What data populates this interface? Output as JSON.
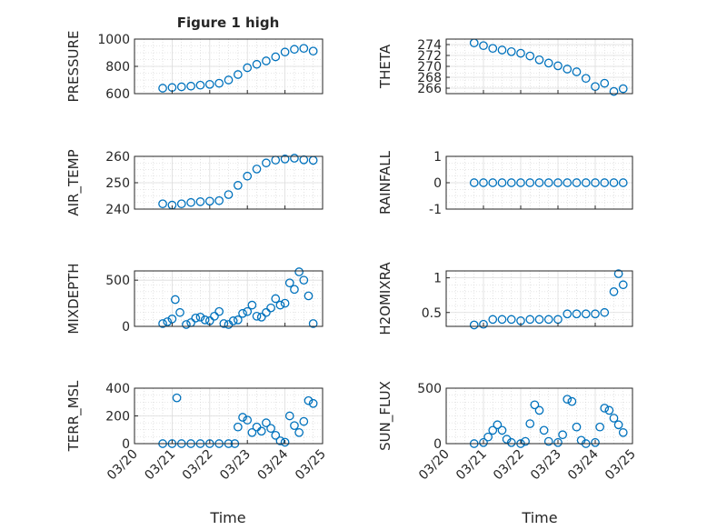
{
  "figure_title": "Figure 1 high",
  "x_axis_label": "Time",
  "chart_data": [
    {
      "type": "scatter",
      "panel": "PRESSURE",
      "title": "Figure 1 high",
      "ylabel": "PRESSURE",
      "ylim": [
        600,
        1000
      ],
      "yticks": [
        600,
        800,
        1000
      ],
      "xlabel": "",
      "xlim": [
        "03/20",
        "03/25"
      ],
      "xtick_labels": [],
      "grid": true,
      "x": [
        "03/20 18:00",
        "03/21 00:00",
        "03/21 06:00",
        "03/21 12:00",
        "03/21 18:00",
        "03/22 00:00",
        "03/22 06:00",
        "03/22 12:00",
        "03/22 18:00",
        "03/23 00:00",
        "03/23 06:00",
        "03/23 12:00",
        "03/23 18:00",
        "03/24 00:00",
        "03/24 06:00",
        "03/24 12:00",
        "03/24 18:00"
      ],
      "y": [
        640,
        645,
        650,
        655,
        662,
        668,
        676,
        700,
        740,
        790,
        815,
        840,
        870,
        905,
        925,
        932,
        912
      ]
    },
    {
      "type": "scatter",
      "panel": "THETA",
      "ylabel": "THETA",
      "ylim": [
        265,
        275
      ],
      "yticks": [
        266,
        268,
        270,
        272,
        274
      ],
      "xlabel": "",
      "xlim": [
        "03/20",
        "03/25"
      ],
      "xtick_labels": [],
      "grid": true,
      "x": [
        "03/20 18:00",
        "03/21 00:00",
        "03/21 06:00",
        "03/21 12:00",
        "03/21 18:00",
        "03/22 00:00",
        "03/22 06:00",
        "03/22 12:00",
        "03/22 18:00",
        "03/23 00:00",
        "03/23 06:00",
        "03/23 12:00",
        "03/23 18:00",
        "03/24 00:00",
        "03/24 06:00",
        "03/24 12:00",
        "03/24 18:00"
      ],
      "y": [
        274.3,
        273.8,
        273.3,
        273.0,
        272.7,
        272.4,
        271.9,
        271.2,
        270.6,
        270.1,
        269.5,
        269.0,
        267.8,
        266.3,
        266.9,
        265.4,
        265.9
      ]
    },
    {
      "type": "scatter",
      "panel": "AIR_TEMP",
      "ylabel": "AIR_TEMP",
      "ylim": [
        240,
        260
      ],
      "yticks": [
        240,
        250,
        260
      ],
      "xlabel": "",
      "xlim": [
        "03/20",
        "03/25"
      ],
      "xtick_labels": [],
      "grid": true,
      "x": [
        "03/20 18:00",
        "03/21 00:00",
        "03/21 06:00",
        "03/21 12:00",
        "03/21 18:00",
        "03/22 00:00",
        "03/22 06:00",
        "03/22 12:00",
        "03/22 18:00",
        "03/23 00:00",
        "03/23 06:00",
        "03/23 12:00",
        "03/23 18:00",
        "03/24 00:00",
        "03/24 06:00",
        "03/24 12:00",
        "03/24 18:00"
      ],
      "y": [
        242.0,
        241.5,
        242.0,
        242.5,
        242.8,
        243.0,
        243.2,
        245.5,
        249.0,
        252.5,
        255.2,
        257.5,
        258.6,
        259.0,
        259.3,
        258.7,
        258.5
      ]
    },
    {
      "type": "scatter",
      "panel": "RAINFALL",
      "ylabel": "RAINFALL",
      "ylim": [
        -1,
        1
      ],
      "yticks": [
        -1,
        0,
        1
      ],
      "xlabel": "",
      "xlim": [
        "03/20",
        "03/25"
      ],
      "xtick_labels": [],
      "grid": true,
      "x": [
        "03/20 18:00",
        "03/21 00:00",
        "03/21 06:00",
        "03/21 12:00",
        "03/21 18:00",
        "03/22 00:00",
        "03/22 06:00",
        "03/22 12:00",
        "03/22 18:00",
        "03/23 00:00",
        "03/23 06:00",
        "03/23 12:00",
        "03/23 18:00",
        "03/24 00:00",
        "03/24 06:00",
        "03/24 12:00",
        "03/24 18:00"
      ],
      "y": [
        0,
        0,
        0,
        0,
        0,
        0,
        0,
        0,
        0,
        0,
        0,
        0,
        0,
        0,
        0,
        0,
        0
      ]
    },
    {
      "type": "scatter",
      "panel": "MIXDEPTH",
      "ylabel": "MIXDEPTH",
      "ylim": [
        0,
        600
      ],
      "yticks": [
        0,
        500
      ],
      "xlabel": "",
      "xlim": [
        "03/20",
        "03/25"
      ],
      "xtick_labels": [],
      "grid": true,
      "x": [
        "03/20 18:00",
        "03/20 21:00",
        "03/21 00:00",
        "03/21 02:00",
        "03/21 05:00",
        "03/21 09:00",
        "03/21 12:00",
        "03/21 15:00",
        "03/21 18:00",
        "03/21 21:00",
        "03/22 00:00",
        "03/22 03:00",
        "03/22 06:00",
        "03/22 09:00",
        "03/22 12:00",
        "03/22 15:00",
        "03/22 18:00",
        "03/22 21:00",
        "03/23 00:00",
        "03/23 03:00",
        "03/23 06:00",
        "03/23 09:00",
        "03/23 12:00",
        "03/23 15:00",
        "03/23 18:00",
        "03/23 21:00",
        "03/24 00:00",
        "03/24 03:00",
        "03/24 06:00",
        "03/24 09:00",
        "03/24 12:00",
        "03/24 15:00",
        "03/24 18:00"
      ],
      "y": [
        30,
        50,
        80,
        290,
        150,
        20,
        40,
        90,
        100,
        70,
        60,
        110,
        160,
        30,
        20,
        60,
        70,
        140,
        160,
        230,
        110,
        100,
        150,
        200,
        300,
        230,
        250,
        470,
        400,
        590,
        500,
        330,
        30
      ]
    },
    {
      "type": "scatter",
      "panel": "H2OMIXRA",
      "ylabel": "H2OMIXRA",
      "ylim": [
        0.3,
        1.1
      ],
      "yticks": [
        0.5,
        1
      ],
      "xlabel": "",
      "xlim": [
        "03/20",
        "03/25"
      ],
      "xtick_labels": [],
      "grid": true,
      "x": [
        "03/20 18:00",
        "03/21 00:00",
        "03/21 06:00",
        "03/21 12:00",
        "03/21 18:00",
        "03/22 00:00",
        "03/22 06:00",
        "03/22 12:00",
        "03/22 18:00",
        "03/23 00:00",
        "03/23 06:00",
        "03/23 12:00",
        "03/23 18:00",
        "03/24 00:00",
        "03/24 06:00",
        "03/24 12:00",
        "03/24 15:00",
        "03/24 18:00"
      ],
      "y": [
        0.32,
        0.33,
        0.4,
        0.4,
        0.4,
        0.38,
        0.4,
        0.4,
        0.4,
        0.4,
        0.48,
        0.48,
        0.48,
        0.48,
        0.5,
        0.8,
        1.06,
        0.9
      ]
    },
    {
      "type": "scatter",
      "panel": "TERR_MSL",
      "ylabel": "TERR_MSL",
      "ylim": [
        0,
        400
      ],
      "yticks": [
        0,
        200,
        400
      ],
      "xlabel": "Time",
      "xlim": [
        "03/20",
        "03/25"
      ],
      "xtick_labels": [
        "03/20",
        "03/21",
        "03/22",
        "03/23",
        "03/24",
        "03/25"
      ],
      "grid": true,
      "x": [
        "03/20 18:00",
        "03/21 00:00",
        "03/21 03:00",
        "03/21 06:00",
        "03/21 12:00",
        "03/21 18:00",
        "03/22 00:00",
        "03/22 06:00",
        "03/22 12:00",
        "03/22 16:00",
        "03/22 18:00",
        "03/22 21:00",
        "03/23 00:00",
        "03/23 03:00",
        "03/23 06:00",
        "03/23 09:00",
        "03/23 12:00",
        "03/23 15:00",
        "03/23 18:00",
        "03/23 21:00",
        "03/24 00:00",
        "03/24 03:00",
        "03/24 06:00",
        "03/24 09:00",
        "03/24 12:00",
        "03/24 15:00",
        "03/24 18:00"
      ],
      "y": [
        0,
        0,
        330,
        0,
        0,
        0,
        0,
        0,
        0,
        0,
        120,
        190,
        170,
        80,
        120,
        90,
        150,
        110,
        60,
        20,
        10,
        200,
        130,
        80,
        160,
        310,
        290
      ]
    },
    {
      "type": "scatter",
      "panel": "SUN_FLUX",
      "ylabel": "SUN_FLUX",
      "ylim": [
        0,
        500
      ],
      "yticks": [
        0,
        500
      ],
      "xlabel": "Time",
      "xlim": [
        "03/20",
        "03/25"
      ],
      "xtick_labels": [
        "03/20",
        "03/21",
        "03/22",
        "03/23",
        "03/24",
        "03/25"
      ],
      "grid": true,
      "x": [
        "03/20 18:00",
        "03/21 00:00",
        "03/21 03:00",
        "03/21 06:00",
        "03/21 09:00",
        "03/21 12:00",
        "03/21 15:00",
        "03/21 18:00",
        "03/22 00:00",
        "03/22 03:00",
        "03/22 06:00",
        "03/22 09:00",
        "03/22 12:00",
        "03/22 15:00",
        "03/22 18:00",
        "03/23 00:00",
        "03/23 03:00",
        "03/23 06:00",
        "03/23 09:00",
        "03/23 12:00",
        "03/23 15:00",
        "03/23 18:00",
        "03/24 00:00",
        "03/24 03:00",
        "03/24 06:00",
        "03/24 09:00",
        "03/24 12:00",
        "03/24 15:00",
        "03/24 18:00"
      ],
      "y": [
        0,
        10,
        60,
        120,
        170,
        120,
        40,
        10,
        0,
        20,
        180,
        350,
        300,
        120,
        20,
        10,
        80,
        400,
        380,
        150,
        30,
        0,
        10,
        150,
        320,
        300,
        230,
        170,
        100
      ]
    }
  ]
}
